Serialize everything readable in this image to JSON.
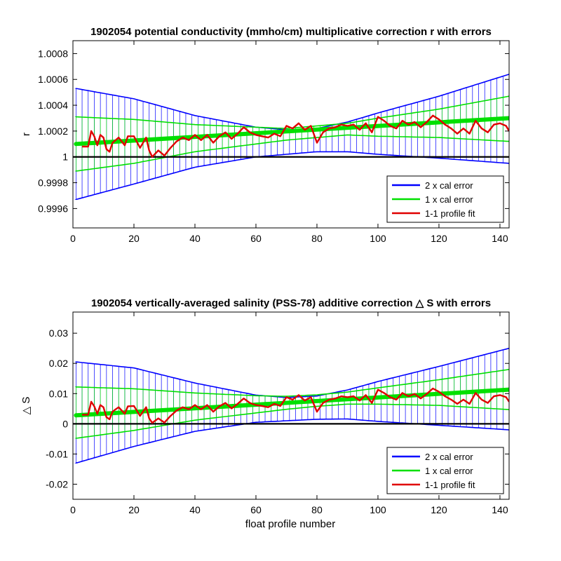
{
  "figure": {
    "xlabel": "float profile number"
  },
  "colors": {
    "two_cal": "#0000ff",
    "one_cal": "#00e000",
    "fit": "#e00000",
    "zero_line": "#000000"
  },
  "legend": {
    "position": "bottom-right",
    "entries": [
      "2 x cal error",
      "1 x cal error",
      "1-1 profile fit"
    ]
  },
  "chart_data": [
    {
      "type": "line",
      "title": "1902054 potential conductivity (mmho/cm) multiplicative correction r with errors",
      "xlabel": "",
      "ylabel": "r",
      "xlim": [
        0,
        143
      ],
      "ylim": [
        0.99945,
        1.0009
      ],
      "xticks": [
        "0",
        "20",
        "40",
        "60",
        "80",
        "100",
        "120",
        "140"
      ],
      "yticks": [
        {
          "v": 0.9996,
          "label": "0.9996"
        },
        {
          "v": 0.9998,
          "label": "0.9998"
        },
        {
          "v": 1.0,
          "label": "1"
        },
        {
          "v": 1.0002,
          "label": "1.0002"
        },
        {
          "v": 1.0004,
          "label": "1.0004"
        },
        {
          "v": 1.0006,
          "label": "1.0006"
        },
        {
          "v": 1.0008,
          "label": "1.0008"
        }
      ],
      "reference_line": 1.0,
      "fit_trend": {
        "x": [
          1,
          143
        ],
        "y": [
          1.0001,
          1.0003
        ]
      },
      "cal_error_2x": {
        "x": [
          1,
          20,
          40,
          60,
          70,
          80,
          90,
          100,
          120,
          143
        ],
        "upper": [
          1.00053,
          1.00045,
          1.00032,
          1.00023,
          1.00021,
          1.00022,
          1.00027,
          1.00034,
          1.00047,
          1.00064
        ],
        "lower": [
          0.99967,
          0.99979,
          0.99992,
          1.0,
          1.00002,
          1.00004,
          1.00004,
          1.00002,
          0.99999,
          0.99995
        ]
      },
      "cal_error_1x": {
        "x": [
          1,
          20,
          40,
          60,
          70,
          80,
          90,
          100,
          120,
          143
        ],
        "upper": [
          1.00031,
          1.00029,
          1.00025,
          1.00023,
          1.00022,
          1.00024,
          1.00026,
          1.0003,
          1.00037,
          1.00047
        ],
        "lower": [
          0.99989,
          0.99995,
          1.00004,
          1.0001,
          1.00013,
          1.00015,
          1.00017,
          1.00016,
          1.00015,
          1.00012
        ]
      },
      "profile_fit": {
        "x": [
          3,
          5,
          6,
          7,
          8,
          9,
          10,
          11,
          12,
          13,
          14,
          15,
          17,
          18,
          20,
          22,
          24,
          25,
          26,
          28,
          30,
          32,
          34,
          36,
          38,
          40,
          42,
          44,
          46,
          48,
          50,
          52,
          54,
          56,
          58,
          60,
          62,
          64,
          66,
          68,
          70,
          72,
          74,
          76,
          78,
          80,
          82,
          84,
          86,
          88,
          90,
          92,
          94,
          96,
          98,
          100,
          102,
          104,
          106,
          108,
          110,
          112,
          114,
          116,
          118,
          120,
          122,
          124,
          126,
          128,
          130,
          132,
          134,
          136,
          138,
          140,
          142,
          143
        ],
        "y": [
          1.00008,
          1.00008,
          1.0002,
          1.00016,
          1.00009,
          1.00017,
          1.00015,
          1.00006,
          1.00004,
          1.00011,
          1.00013,
          1.00015,
          1.00009,
          1.00016,
          1.00016,
          1.00007,
          1.00015,
          1.00005,
          1.0,
          1.00005,
          1.00001,
          1.00007,
          1.00012,
          1.00015,
          1.00013,
          1.00017,
          1.00013,
          1.00017,
          1.00011,
          1.00016,
          1.00019,
          1.00014,
          1.00018,
          1.00023,
          1.00019,
          1.00017,
          1.00016,
          1.00015,
          1.00018,
          1.00016,
          1.00024,
          1.00022,
          1.00026,
          1.00021,
          1.00024,
          1.00011,
          1.00019,
          1.00022,
          1.00023,
          1.00025,
          1.00024,
          1.00025,
          1.00021,
          1.00026,
          1.00019,
          1.00031,
          1.00028,
          1.00024,
          1.00022,
          1.00028,
          1.00025,
          1.00027,
          1.00023,
          1.00027,
          1.00032,
          1.00029,
          1.00025,
          1.00022,
          1.00018,
          1.00022,
          1.00018,
          1.00028,
          1.00022,
          1.00019,
          1.00025,
          1.00026,
          1.00024,
          1.0002
        ]
      }
    },
    {
      "type": "line",
      "title": "1902054 vertically-averaged salinity (PSS-78) additive correction △ S with errors",
      "xlabel": "float profile number",
      "ylabel": "△ S",
      "xlim": [
        0,
        143
      ],
      "ylim": [
        -0.025,
        0.037
      ],
      "xticks": [
        "0",
        "20",
        "40",
        "60",
        "80",
        "100",
        "120",
        "140"
      ],
      "yticks": [
        {
          "v": -0.02,
          "label": "-0.02"
        },
        {
          "v": -0.01,
          "label": "-0.01"
        },
        {
          "v": 0.0,
          "label": "0"
        },
        {
          "v": 0.01,
          "label": "0.01"
        },
        {
          "v": 0.02,
          "label": "0.02"
        },
        {
          "v": 0.03,
          "label": "0.03"
        }
      ],
      "reference_line": 0.0,
      "fit_trend": {
        "x": [
          1,
          143
        ],
        "y": [
          0.0028,
          0.0113
        ]
      },
      "cal_error_2x": {
        "x": [
          1,
          20,
          40,
          60,
          70,
          80,
          90,
          100,
          120,
          143
        ],
        "upper": [
          0.0205,
          0.0185,
          0.0135,
          0.0095,
          0.0087,
          0.0092,
          0.0112,
          0.014,
          0.019,
          0.025
        ],
        "lower": [
          -0.013,
          -0.0075,
          -0.0025,
          0.0005,
          0.001,
          0.0015,
          0.0016,
          0.0008,
          -0.0005,
          -0.002
        ]
      },
      "cal_error_1x": {
        "x": [
          1,
          20,
          40,
          60,
          70,
          80,
          90,
          100,
          120,
          143
        ],
        "upper": [
          0.0122,
          0.0116,
          0.0102,
          0.0093,
          0.0091,
          0.0096,
          0.0105,
          0.0119,
          0.0146,
          0.018
        ],
        "lower": [
          -0.0048,
          -0.0022,
          0.0012,
          0.0036,
          0.0048,
          0.0058,
          0.0065,
          0.0065,
          0.0061,
          0.0047
        ]
      },
      "profile_fit": {
        "x": [
          3,
          5,
          6,
          7,
          8,
          9,
          10,
          11,
          12,
          13,
          14,
          15,
          17,
          18,
          20,
          22,
          24,
          25,
          26,
          28,
          30,
          32,
          34,
          36,
          38,
          40,
          42,
          44,
          46,
          48,
          50,
          52,
          54,
          56,
          58,
          60,
          62,
          64,
          66,
          68,
          70,
          72,
          74,
          76,
          78,
          80,
          82,
          84,
          86,
          88,
          90,
          92,
          94,
          96,
          98,
          100,
          102,
          104,
          106,
          108,
          110,
          112,
          114,
          116,
          118,
          120,
          122,
          124,
          126,
          128,
          130,
          132,
          134,
          136,
          138,
          140,
          142,
          143
        ],
        "y": [
          0.003,
          0.003,
          0.0073,
          0.0058,
          0.0033,
          0.0062,
          0.0055,
          0.0022,
          0.0015,
          0.004,
          0.0048,
          0.0055,
          0.0033,
          0.0058,
          0.0059,
          0.0026,
          0.0055,
          0.0018,
          0.0003,
          0.0018,
          0.0004,
          0.0026,
          0.0044,
          0.0055,
          0.0048,
          0.0062,
          0.0048,
          0.0062,
          0.004,
          0.0058,
          0.0069,
          0.0051,
          0.0066,
          0.0084,
          0.0069,
          0.0062,
          0.0059,
          0.0055,
          0.0066,
          0.0059,
          0.0088,
          0.008,
          0.0095,
          0.0077,
          0.0088,
          0.004,
          0.0069,
          0.008,
          0.0084,
          0.0091,
          0.0088,
          0.0091,
          0.0077,
          0.0095,
          0.0069,
          0.0113,
          0.0102,
          0.0088,
          0.008,
          0.0102,
          0.0091,
          0.0099,
          0.0084,
          0.0099,
          0.0117,
          0.0106,
          0.0091,
          0.008,
          0.0066,
          0.008,
          0.0066,
          0.0102,
          0.008,
          0.0069,
          0.0091,
          0.0095,
          0.0088,
          0.0073
        ]
      }
    }
  ]
}
